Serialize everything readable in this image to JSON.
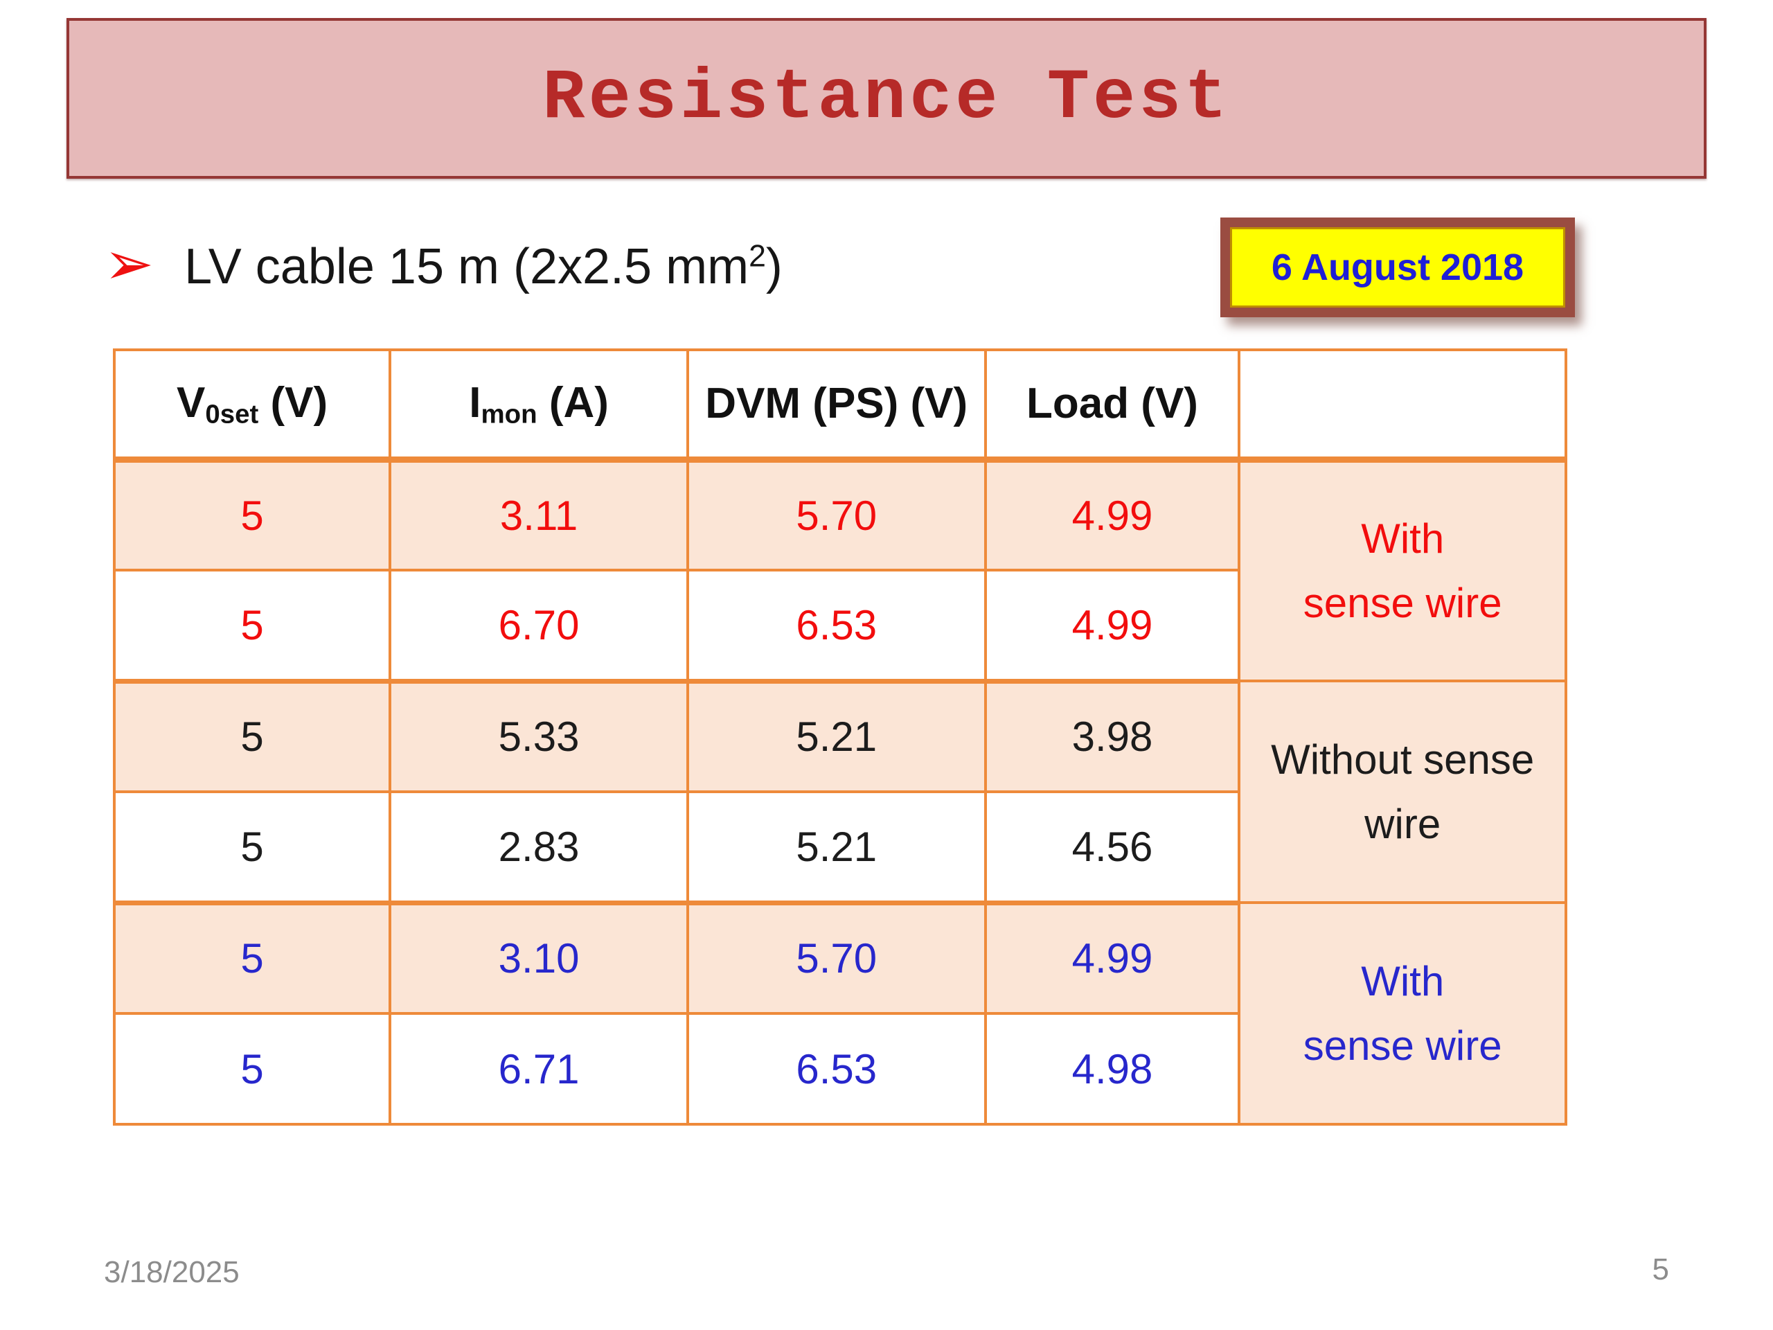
{
  "slide": {
    "title": "Resistance Test",
    "bullet": {
      "icon": "➢",
      "text_prefix": "LV cable 15 m (2x2.5 mm",
      "superscript": "2",
      "text_suffix": ")"
    },
    "date_badge": "6 August 2018",
    "footer": {
      "date": "3/18/2025",
      "page": "5"
    }
  },
  "table": {
    "headers": {
      "col1": {
        "base": "V",
        "sub": "0set",
        "rest": " (V)"
      },
      "col2": {
        "base": "I",
        "sub": "mon",
        "rest": " (A)"
      },
      "col3": "DVM (PS) (V)",
      "col4": "Load (V)",
      "col5": ""
    },
    "rows": [
      {
        "cells": [
          "5",
          "3.11",
          "5.70",
          "4.99"
        ]
      },
      {
        "cells": [
          "5",
          "6.70",
          "6.53",
          "4.99"
        ]
      },
      {
        "cells": [
          "5",
          "5.33",
          "5.21",
          "3.98"
        ]
      },
      {
        "cells": [
          "5",
          "2.83",
          "5.21",
          "4.56"
        ]
      },
      {
        "cells": [
          "5",
          "3.10",
          "5.70",
          "4.99"
        ]
      },
      {
        "cells": [
          "5",
          "6.71",
          "6.53",
          "4.98"
        ]
      }
    ],
    "groups": [
      {
        "label": "With\nsense wire",
        "text_color": "#f20d0d"
      },
      {
        "label": "Without sense\nwire",
        "text_color": "#1c1c1c"
      },
      {
        "label": "With\nsense wire",
        "text_color": "#2727cc"
      }
    ]
  },
  "colors": {
    "banner_fill": "#e6b9b9",
    "banner_border": "#953735",
    "title_text": "#b62a28",
    "table_border": "#ee8a3a",
    "row_shading": "#fbe5d6",
    "group1_red": "#f20d0d",
    "group2_black": "#1c1c1c",
    "group3_blue": "#2727cc",
    "badge_fill": "#ffff00",
    "badge_frame": "#9a4c41",
    "badge_text": "#1f1fd6",
    "footer_text": "#8c8c8c"
  }
}
